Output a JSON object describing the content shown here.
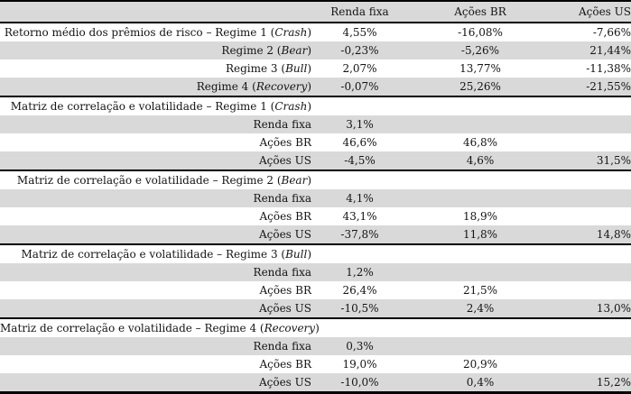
{
  "table": {
    "colors": {
      "row_shading": "#d9d9d9",
      "border": "#000000",
      "text": "#141414"
    },
    "header": {
      "col1": "",
      "col2": "Renda fixa",
      "col3": "Ações BR",
      "col4": "Ações US"
    },
    "rows": [
      {
        "label_pre": "Retorno médio dos prêmios de risco – Regime 1 (",
        "label_italic": "Crash",
        "label_post": ")",
        "renda_fixa": "4,55%",
        "acoes_br": "-16,08%",
        "acoes_us": "-7,66%",
        "shaded": false,
        "section_end": false
      },
      {
        "label_pre": "Regime 2 (",
        "label_italic": "Bear",
        "label_post": ")",
        "renda_fixa": "-0,23%",
        "acoes_br": "-5,26%",
        "acoes_us": "21,44%",
        "shaded": true,
        "section_end": false
      },
      {
        "label_pre": "Regime 3 (",
        "label_italic": "Bull",
        "label_post": ")",
        "renda_fixa": "2,07%",
        "acoes_br": "13,77%",
        "acoes_us": "-11,38%",
        "shaded": false,
        "section_end": false
      },
      {
        "label_pre": "Regime 4 (",
        "label_italic": "Recovery",
        "label_post": ")",
        "renda_fixa": "-0,07%",
        "acoes_br": "25,26%",
        "acoes_us": "-21,55%",
        "shaded": true,
        "section_end": true
      },
      {
        "label_pre": "Matriz de correlação e volatilidade – Regime 1 (",
        "label_italic": "Crash",
        "label_post": ")",
        "renda_fixa": "",
        "acoes_br": "",
        "acoes_us": "",
        "shaded": false,
        "section_end": false
      },
      {
        "label_pre": "Renda fixa",
        "label_italic": "",
        "label_post": "",
        "renda_fixa": "3,1%",
        "acoes_br": "",
        "acoes_us": "",
        "shaded": true,
        "section_end": false
      },
      {
        "label_pre": "Ações BR",
        "label_italic": "",
        "label_post": "",
        "renda_fixa": "46,6%",
        "acoes_br": "46,8%",
        "acoes_us": "",
        "shaded": false,
        "section_end": false
      },
      {
        "label_pre": "Ações US",
        "label_italic": "",
        "label_post": "",
        "renda_fixa": "-4,5%",
        "acoes_br": "4,6%",
        "acoes_us": "31,5%",
        "shaded": true,
        "section_end": true
      },
      {
        "label_pre": "Matriz de correlação e volatilidade – Regime 2 (",
        "label_italic": "Bear",
        "label_post": ")",
        "renda_fixa": "",
        "acoes_br": "",
        "acoes_us": "",
        "shaded": false,
        "section_end": false
      },
      {
        "label_pre": "Renda fixa",
        "label_italic": "",
        "label_post": "",
        "renda_fixa": "4,1%",
        "acoes_br": "",
        "acoes_us": "",
        "shaded": true,
        "section_end": false
      },
      {
        "label_pre": "Ações BR",
        "label_italic": "",
        "label_post": "",
        "renda_fixa": "43,1%",
        "acoes_br": "18,9%",
        "acoes_us": "",
        "shaded": false,
        "section_end": false
      },
      {
        "label_pre": "Ações US",
        "label_italic": "",
        "label_post": "",
        "renda_fixa": "-37,8%",
        "acoes_br": "11,8%",
        "acoes_us": "14,8%",
        "shaded": true,
        "section_end": true
      },
      {
        "label_pre": "Matriz de correlação e volatilidade – Regime 3 (",
        "label_italic": "Bull",
        "label_post": ")",
        "renda_fixa": "",
        "acoes_br": "",
        "acoes_us": "",
        "shaded": false,
        "section_end": false
      },
      {
        "label_pre": "Renda fixa",
        "label_italic": "",
        "label_post": "",
        "renda_fixa": "1,2%",
        "acoes_br": "",
        "acoes_us": "",
        "shaded": true,
        "section_end": false
      },
      {
        "label_pre": "Ações BR",
        "label_italic": "",
        "label_post": "",
        "renda_fixa": "26,4%",
        "acoes_br": "21,5%",
        "acoes_us": "",
        "shaded": false,
        "section_end": false
      },
      {
        "label_pre": "Ações US",
        "label_italic": "",
        "label_post": "",
        "renda_fixa": "-10,5%",
        "acoes_br": "2,4%",
        "acoes_us": "13,0%",
        "shaded": true,
        "section_end": true
      },
      {
        "label_pre": "Matriz de correlação e volatilidade – Regime 4 (",
        "label_italic": "Recovery",
        "label_post": ")",
        "renda_fixa": "",
        "acoes_br": "",
        "acoes_us": "",
        "shaded": false,
        "section_end": false
      },
      {
        "label_pre": "Renda fixa",
        "label_italic": "",
        "label_post": "",
        "renda_fixa": "0,3%",
        "acoes_br": "",
        "acoes_us": "",
        "shaded": true,
        "section_end": false
      },
      {
        "label_pre": "Ações BR",
        "label_italic": "",
        "label_post": "",
        "renda_fixa": "19,0%",
        "acoes_br": "20,9%",
        "acoes_us": "",
        "shaded": false,
        "section_end": false
      },
      {
        "label_pre": "Ações US",
        "label_italic": "",
        "label_post": "",
        "renda_fixa": "-10,0%",
        "acoes_br": "0,4%",
        "acoes_us": "15,2%",
        "shaded": true,
        "section_end": false
      }
    ]
  }
}
